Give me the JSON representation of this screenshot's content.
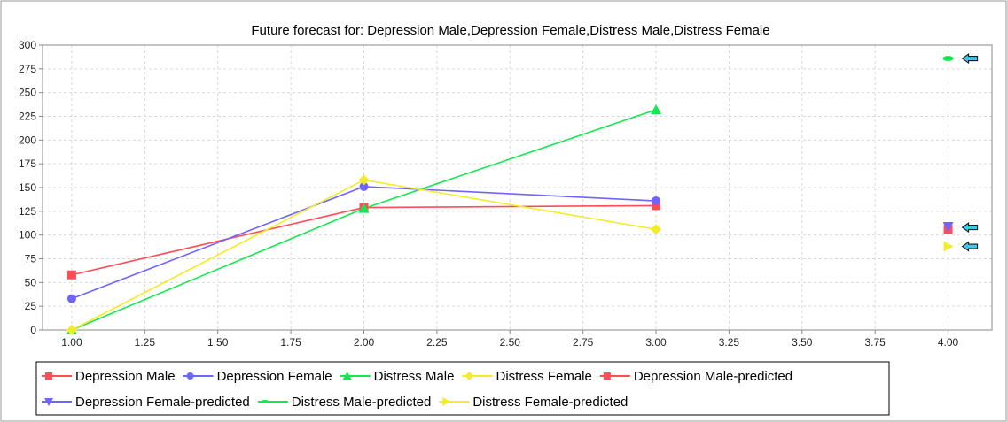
{
  "chart_data": {
    "type": "line",
    "title": "Future forecast for: Depression Male,Depression Female,Distress Male,Distress Female",
    "xlabel": "",
    "ylabel": "",
    "xlim": [
      0.9,
      4.15
    ],
    "ylim": [
      0,
      300
    ],
    "x_ticks": [
      "1.00",
      "1.25",
      "1.50",
      "1.75",
      "2.00",
      "2.25",
      "2.50",
      "2.75",
      "3.00",
      "3.25",
      "3.50",
      "3.75",
      "4.00"
    ],
    "y_ticks": [
      "0",
      "25",
      "50",
      "75",
      "100",
      "125",
      "150",
      "175",
      "200",
      "225",
      "250",
      "275",
      "300"
    ],
    "grid": true,
    "legend_position": "bottom",
    "series": [
      {
        "name": "Depression Male",
        "color": "#ff4d58",
        "marker": "square",
        "line": true,
        "points": [
          [
            1,
            58
          ],
          [
            2,
            129
          ],
          [
            3,
            131
          ]
        ]
      },
      {
        "name": "Depression Female",
        "color": "#6f64ff",
        "marker": "circle",
        "line": true,
        "points": [
          [
            1,
            33
          ],
          [
            2,
            151
          ],
          [
            3,
            136
          ]
        ]
      },
      {
        "name": "Distress Male",
        "color": "#14e850",
        "marker": "triangle-up",
        "line": true,
        "points": [
          [
            1,
            0
          ],
          [
            2,
            128
          ],
          [
            3,
            232
          ]
        ]
      },
      {
        "name": "Distress Female",
        "color": "#f4ec2a",
        "marker": "diamond",
        "line": true,
        "points": [
          [
            1,
            0
          ],
          [
            2,
            158
          ],
          [
            3,
            106
          ]
        ]
      },
      {
        "name": "Depression Male-predicted",
        "color": "#ff4d58",
        "marker": "square",
        "line": false,
        "points": [
          [
            4,
            106
          ]
        ]
      },
      {
        "name": "Depression Female-predicted",
        "color": "#6f64ff",
        "marker": "triangle-down",
        "line": false,
        "points": [
          [
            4,
            109
          ]
        ]
      },
      {
        "name": "Distress Male-predicted",
        "color": "#14e850",
        "marker": "ellipse",
        "line": false,
        "points": [
          [
            4,
            286
          ]
        ]
      },
      {
        "name": "Distress Female-predicted",
        "color": "#f4ec2a",
        "marker": "triangle-right",
        "line": false,
        "points": [
          [
            4,
            88
          ]
        ]
      }
    ],
    "pointer_arrows": {
      "color": "#41c8e8",
      "count": 3,
      "y_values": [
        286,
        108,
        88
      ]
    }
  }
}
